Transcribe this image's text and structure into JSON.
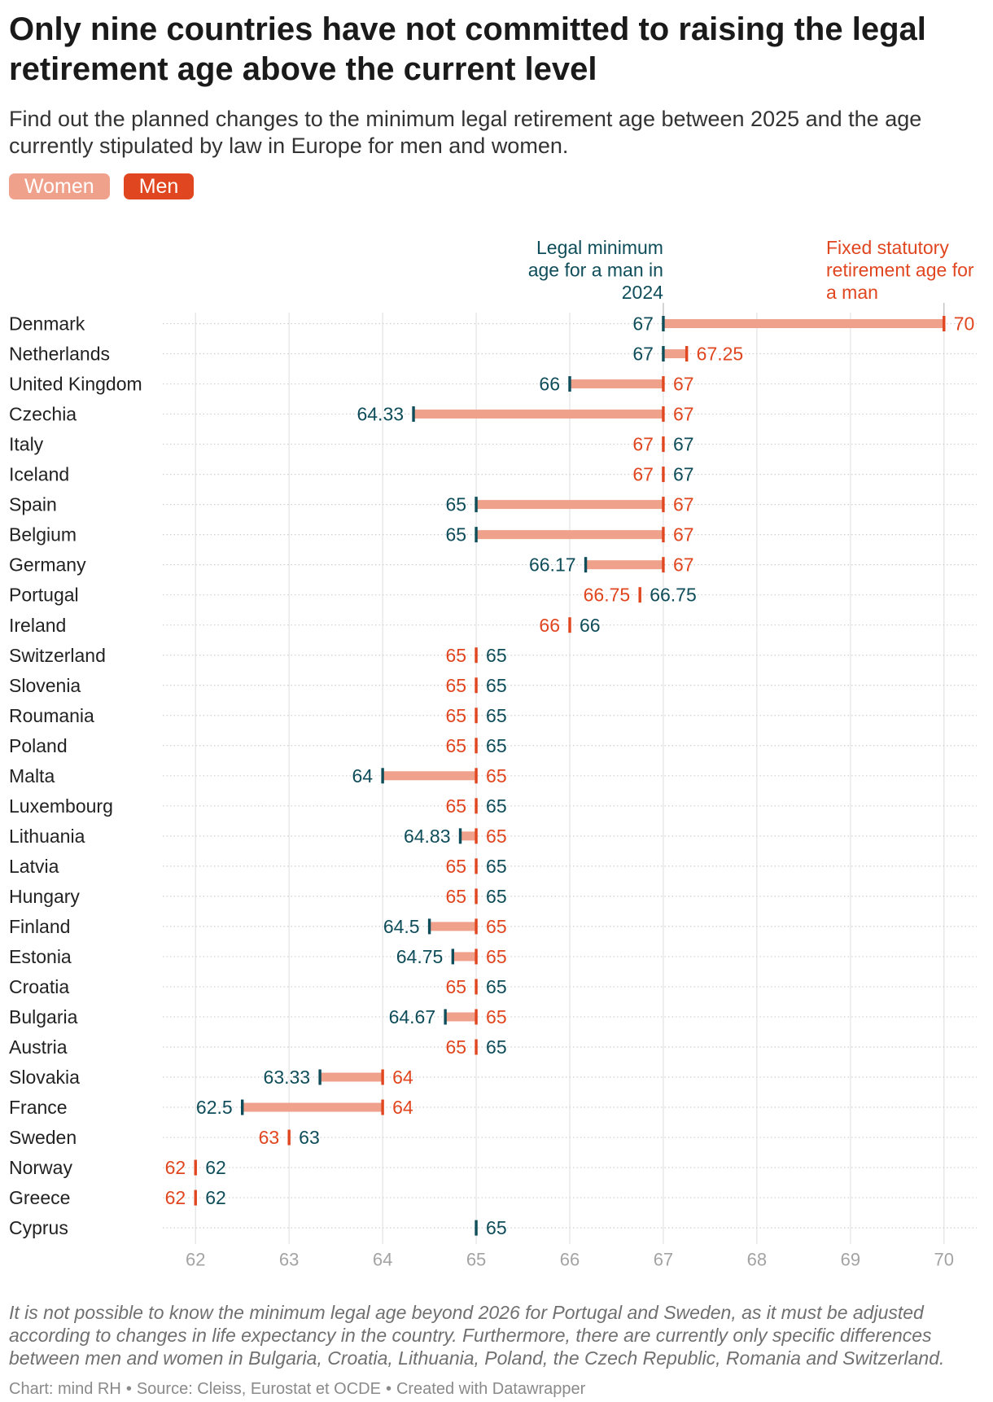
{
  "chart_data": {
    "type": "bar",
    "title": "Only nine countries have not committed to raising the legal retirement age above the current level",
    "subtitle": "Find out the planned changes to the minimum legal retirement age between 2025 and the age currently stipulated by law in Europe for men and women.",
    "legend": [
      {
        "label": "Women",
        "color": "#f0a18c"
      },
      {
        "label": "Men",
        "color": "#e0461f"
      }
    ],
    "categories": [
      "Denmark",
      "Netherlands",
      "United Kingdom",
      "Czechia",
      "Italy",
      "Iceland",
      "Spain",
      "Belgium",
      "Germany",
      "Portugal",
      "Ireland",
      "Switzerland",
      "Slovenia",
      "Roumania",
      "Poland",
      "Malta",
      "Luxembourg",
      "Lithuania",
      "Latvia",
      "Hungary",
      "Finland",
      "Estonia",
      "Croatia",
      "Bulgaria",
      "Austria",
      "Slovakia",
      "France",
      "Sweden",
      "Norway",
      "Greece",
      "Cyprus"
    ],
    "series": [
      {
        "label_lines": [
          "Legal minimum",
          "age for a man in",
          "2024"
        ],
        "color": "#0f4d5a",
        "values": [
          67,
          67,
          66,
          64.33,
          67,
          67,
          65,
          65,
          66.17,
          66.75,
          66,
          65,
          65,
          65,
          65,
          64,
          65,
          64.83,
          65,
          65,
          64.5,
          64.75,
          65,
          64.67,
          65,
          63.33,
          62.5,
          63,
          62,
          62,
          65
        ]
      },
      {
        "label_lines": [
          "Fixed statutory",
          "retirement age for",
          "a man"
        ],
        "color": "#e0461f",
        "values": [
          70,
          67.25,
          67,
          67,
          67,
          67,
          67,
          67,
          67,
          66.75,
          66,
          65,
          65,
          65,
          65,
          65,
          65,
          65,
          65,
          65,
          65,
          65,
          65,
          65,
          65,
          64,
          64,
          63,
          62,
          62,
          null
        ]
      }
    ],
    "range_color": "#f0a18c",
    "x_ticks": [
      62,
      63,
      64,
      65,
      66,
      67,
      68,
      69,
      70
    ],
    "xlim": [
      61.65,
      70.35
    ],
    "grid": true,
    "notes": "It is not possible to know the minimum legal age beyond 2026 for Portugal and Sweden, as it must be adjusted according to changes in life expectancy in the country. Furthermore, there are currently only specific differences between men and women in Bulgaria, Croatia, Lithuania, Poland, the Czech Republic, Romania and Switzerland.",
    "credit": {
      "byline": "Chart: mind RH",
      "separator": "•",
      "source": "Source: Cleiss, Eurostat et OCDE",
      "created_with": "Created with Datawrapper"
    }
  }
}
